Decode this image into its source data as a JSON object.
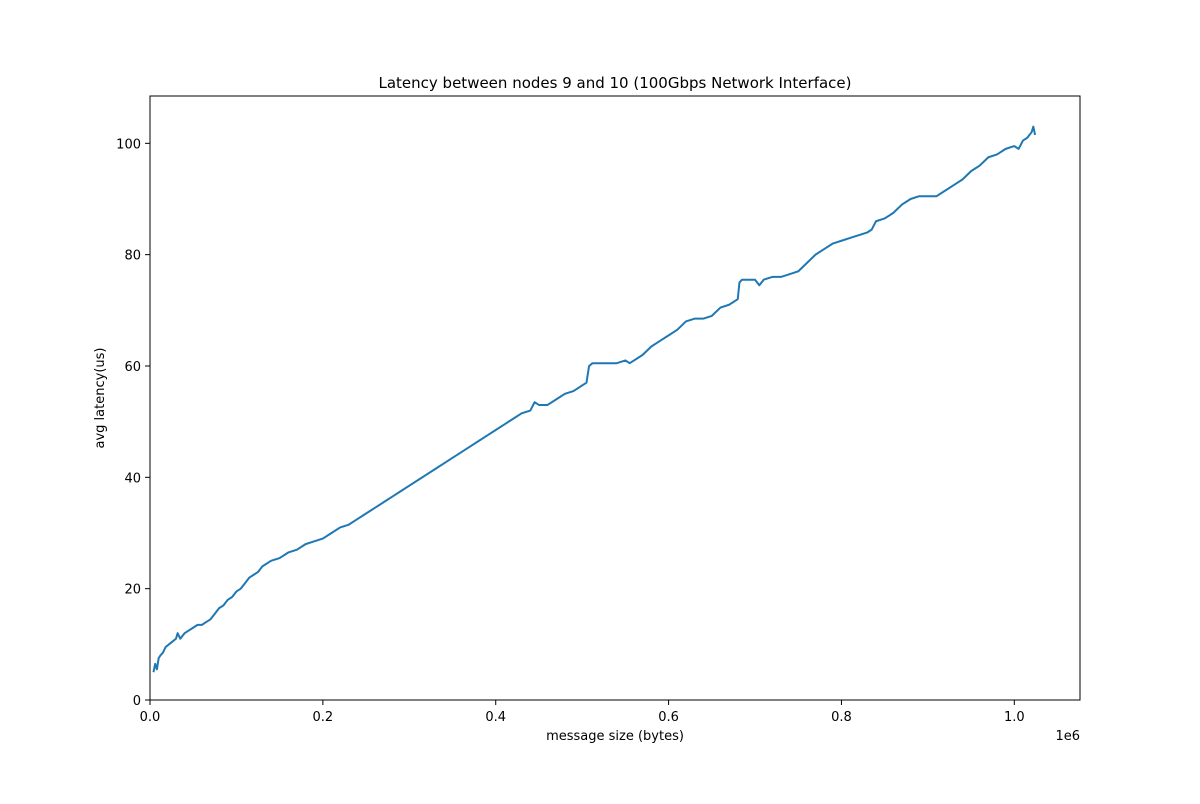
{
  "chart_data": {
    "type": "line",
    "title": "Latency between nodes 9 and 10 (100Gbps Network Interface)",
    "xlabel": "message size (bytes)",
    "ylabel": "avg latency(us)",
    "x_offset_label": "1e6",
    "xlim": [
      0,
      1.076
    ],
    "ylim": [
      0,
      108.5
    ],
    "x_ticks": [
      0.0,
      0.2,
      0.4,
      0.6,
      0.8,
      1.0
    ],
    "x_tick_labels": [
      "0.0",
      "0.2",
      "0.4",
      "0.6",
      "0.8",
      "1.0"
    ],
    "y_ticks": [
      0,
      20,
      40,
      60,
      80,
      100
    ],
    "y_tick_labels": [
      "0",
      "20",
      "40",
      "60",
      "80",
      "100"
    ],
    "grid": false,
    "colors": {
      "line": "#1f77b4"
    },
    "series": [
      {
        "x": [
          0.004,
          0.006,
          0.008,
          0.01,
          0.012,
          0.015,
          0.018,
          0.022,
          0.026,
          0.03,
          0.032,
          0.035,
          0.04,
          0.045,
          0.05,
          0.055,
          0.06,
          0.065,
          0.07,
          0.075,
          0.08,
          0.085,
          0.09,
          0.095,
          0.1,
          0.105,
          0.11,
          0.115,
          0.12,
          0.125,
          0.13,
          0.14,
          0.15,
          0.16,
          0.17,
          0.18,
          0.19,
          0.2,
          0.21,
          0.22,
          0.23,
          0.24,
          0.25,
          0.26,
          0.27,
          0.28,
          0.29,
          0.3,
          0.31,
          0.32,
          0.33,
          0.34,
          0.35,
          0.36,
          0.37,
          0.38,
          0.39,
          0.4,
          0.41,
          0.42,
          0.43,
          0.44,
          0.445,
          0.45,
          0.46,
          0.47,
          0.48,
          0.49,
          0.5,
          0.505,
          0.508,
          0.512,
          0.52,
          0.53,
          0.54,
          0.55,
          0.555,
          0.56,
          0.57,
          0.58,
          0.59,
          0.6,
          0.61,
          0.62,
          0.63,
          0.64,
          0.65,
          0.66,
          0.67,
          0.68,
          0.682,
          0.685,
          0.69,
          0.7,
          0.705,
          0.71,
          0.72,
          0.73,
          0.74,
          0.75,
          0.76,
          0.77,
          0.78,
          0.79,
          0.8,
          0.81,
          0.82,
          0.83,
          0.835,
          0.84,
          0.85,
          0.86,
          0.87,
          0.875,
          0.88,
          0.89,
          0.9,
          0.91,
          0.92,
          0.93,
          0.94,
          0.95,
          0.96,
          0.97,
          0.98,
          0.99,
          1.0,
          1.005,
          1.01,
          1.015,
          1.02,
          1.022,
          1.024
        ],
        "y": [
          5.0,
          6.5,
          5.5,
          7.5,
          8.0,
          8.5,
          9.5,
          10.0,
          10.5,
          11.0,
          12.0,
          11.0,
          12.0,
          12.5,
          13.0,
          13.5,
          13.5,
          14.0,
          14.5,
          15.5,
          16.5,
          17.0,
          18.0,
          18.5,
          19.5,
          20.0,
          21.0,
          22.0,
          22.5,
          23.0,
          24.0,
          25.0,
          25.5,
          26.5,
          27.0,
          28.0,
          28.5,
          29.0,
          30.0,
          31.0,
          31.5,
          32.5,
          33.5,
          34.5,
          35.5,
          36.5,
          37.5,
          38.5,
          39.5,
          40.5,
          41.5,
          42.5,
          43.5,
          44.5,
          45.5,
          46.5,
          47.5,
          48.5,
          49.5,
          50.5,
          51.5,
          52.0,
          53.5,
          53.0,
          53.0,
          54.0,
          55.0,
          55.5,
          56.5,
          57.0,
          60.0,
          60.5,
          60.5,
          60.5,
          60.5,
          61.0,
          60.5,
          61.0,
          62.0,
          63.5,
          64.5,
          65.5,
          66.5,
          68.0,
          68.5,
          68.5,
          69.0,
          70.5,
          71.0,
          72.0,
          75.0,
          75.5,
          75.5,
          75.5,
          74.5,
          75.5,
          76.0,
          76.0,
          76.5,
          77.0,
          78.5,
          80.0,
          81.0,
          82.0,
          82.5,
          83.0,
          83.5,
          84.0,
          84.5,
          86.0,
          86.5,
          87.5,
          89.0,
          89.5,
          90.0,
          90.5,
          90.5,
          90.5,
          91.5,
          92.5,
          93.5,
          95.0,
          96.0,
          97.5,
          98.0,
          99.0,
          99.5,
          99.0,
          100.5,
          101.0,
          102.0,
          103.0,
          101.5
        ]
      }
    ]
  }
}
